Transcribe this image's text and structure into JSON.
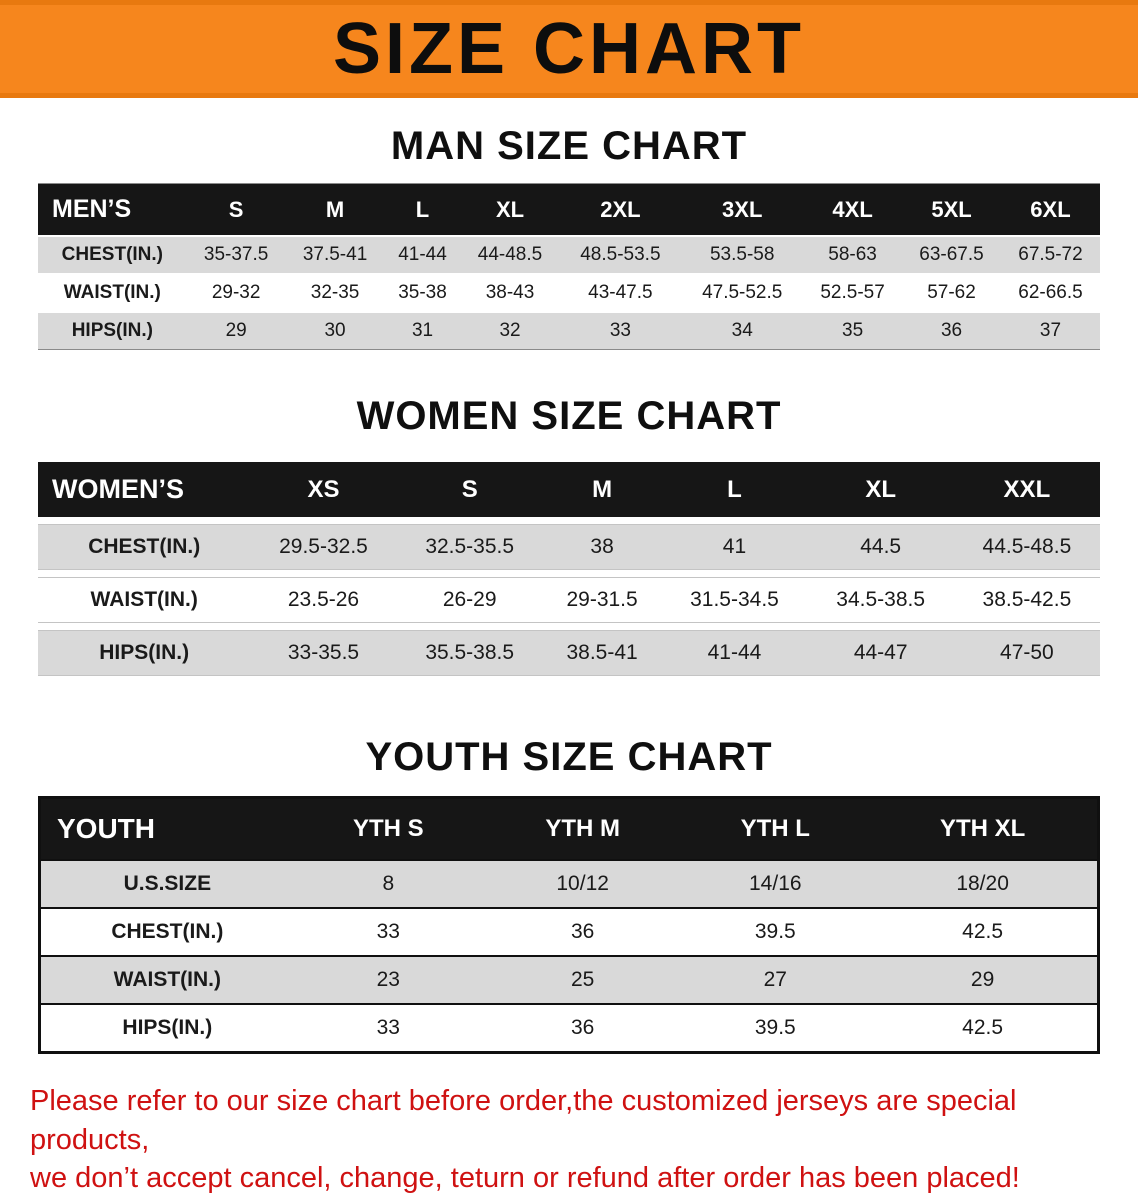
{
  "banner": {
    "title": "SIZE CHART",
    "background_color": "#f6861d",
    "title_color": "#0d0d0d"
  },
  "sections": [
    {
      "id": "men",
      "heading": "MAN SIZE CHART",
      "table": {
        "header": [
          "MEN’S",
          "S",
          "M",
          "L",
          "XL",
          "2XL",
          "3XL",
          "4XL",
          "5XL",
          "6XL"
        ],
        "rows": [
          [
            "CHEST(IN.)",
            "35-37.5",
            "37.5-41",
            "41-44",
            "44-48.5",
            "48.5-53.5",
            "53.5-58",
            "58-63",
            "63-67.5",
            "67.5-72"
          ],
          [
            "WAIST(IN.)",
            "29-32",
            "32-35",
            "35-38",
            "38-43",
            "43-47.5",
            "47.5-52.5",
            "52.5-57",
            "57-62",
            "62-66.5"
          ],
          [
            "HIPS(IN.)",
            "29",
            "30",
            "31",
            "32",
            "33",
            "34",
            "35",
            "36",
            "37"
          ]
        ]
      }
    },
    {
      "id": "women",
      "heading": "WOMEN SIZE CHART",
      "table": {
        "header": [
          "WOMEN’S",
          "XS",
          "S",
          "M",
          "L",
          "XL",
          "XXL"
        ],
        "rows": [
          [
            "CHEST(IN.)",
            "29.5-32.5",
            "32.5-35.5",
            "38",
            "41",
            "44.5",
            "44.5-48.5"
          ],
          [
            "WAIST(IN.)",
            "23.5-26",
            "26-29",
            "29-31.5",
            "31.5-34.5",
            "34.5-38.5",
            "38.5-42.5"
          ],
          [
            "HIPS(IN.)",
            "33-35.5",
            "35.5-38.5",
            "38.5-41",
            "41-44",
            "44-47",
            "47-50"
          ]
        ]
      }
    },
    {
      "id": "youth",
      "heading": "YOUTH SIZE CHART",
      "table": {
        "header": [
          "YOUTH",
          "YTH S",
          "YTH M",
          "YTH L",
          "YTH XL"
        ],
        "rows": [
          [
            "U.S.SIZE",
            "8",
            "10/12",
            "14/16",
            "18/20"
          ],
          [
            "CHEST(IN.)",
            "33",
            "36",
            "39.5",
            "42.5"
          ],
          [
            "WAIST(IN.)",
            "23",
            "25",
            "27",
            "29"
          ],
          [
            "HIPS(IN.)",
            "33",
            "36",
            "39.5",
            "42.5"
          ]
        ]
      }
    }
  ],
  "footer": {
    "line1": "Please refer to our size chart before order,the customized jerseys are special products,",
    "line2": "we don’t accept cancel, change, teturn or refund after order has been placed!",
    "text_color": "#cf1111"
  },
  "colors": {
    "header_row_background": "#161616",
    "alt_row_background": "#d9d9d9"
  }
}
